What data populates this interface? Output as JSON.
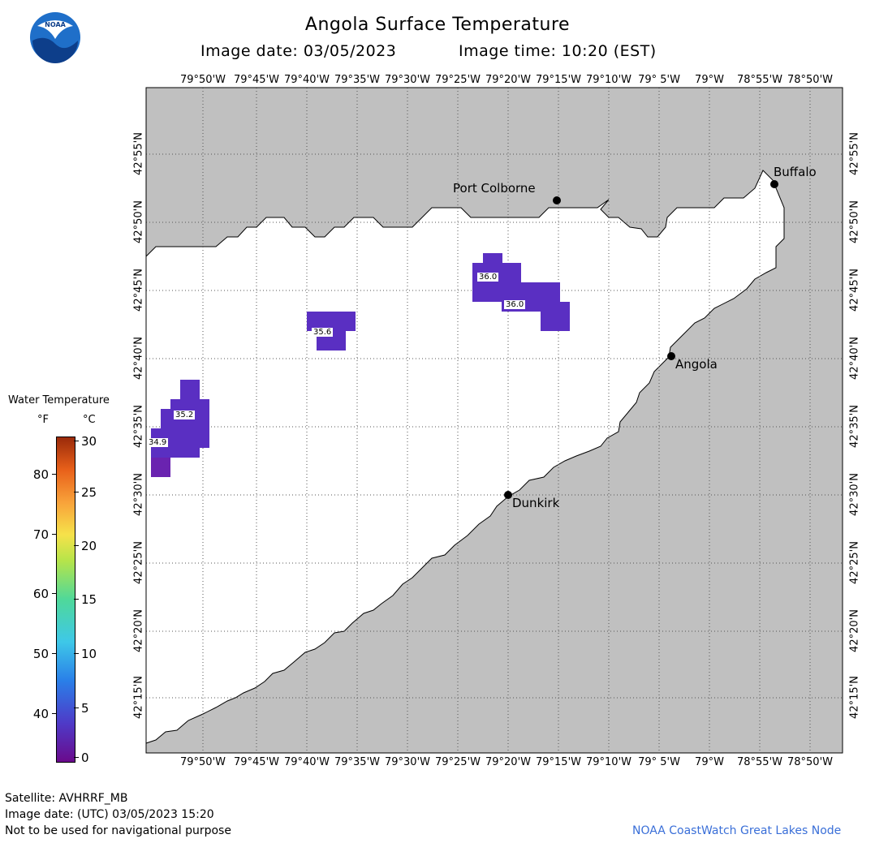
{
  "header": {
    "title": "Angola Surface Temperature",
    "date_label": "Image date: 03/05/2023",
    "time_label": "Image time: 10:20 (EST)"
  },
  "logo": {
    "text": "NOAA",
    "icon": "noaa-logo-icon"
  },
  "map": {
    "lon_labels": [
      "79°50'W",
      "79°45'W",
      "79°40'W",
      "79°35'W",
      "79°30'W",
      "79°25'W",
      "79°20'W",
      "79°15'W",
      "79°10'W",
      "79° 5'W",
      "79°W",
      "78°55'W",
      "78°50'W"
    ],
    "lat_labels": [
      "42°55'N",
      "42°50'N",
      "42°45'N",
      "42°40'N",
      "42°35'N",
      "42°30'N",
      "42°25'N",
      "42°20'N",
      "42°15'N"
    ],
    "places": [
      {
        "name": "Buffalo"
      },
      {
        "name": "Port Colborne"
      },
      {
        "name": "Angola"
      },
      {
        "name": "Dunkirk"
      }
    ],
    "temperature_labels": [
      "36.0",
      "36.0",
      "35.6",
      "35.2",
      "34.9"
    ],
    "colors": {
      "land": "#c0c0c0",
      "water": "#ffffff",
      "cold_pixel": "#5a2fc2",
      "grid": "#555555"
    }
  },
  "legend": {
    "title": "Water Temperature",
    "unit_f": "°F",
    "unit_c": "°C",
    "f_ticks": [
      "80",
      "70",
      "60",
      "50",
      "40"
    ],
    "c_ticks": [
      "30",
      "25",
      "20",
      "15",
      "10",
      "5",
      "0"
    ]
  },
  "footer": {
    "satellite": "Satellite: AVHRRF_MB",
    "utc_date": "Image date: (UTC) 03/05/2023  15:20",
    "disclaimer": "Not to be used for navigational purpose",
    "credit": "NOAA CoastWatch Great Lakes Node"
  }
}
